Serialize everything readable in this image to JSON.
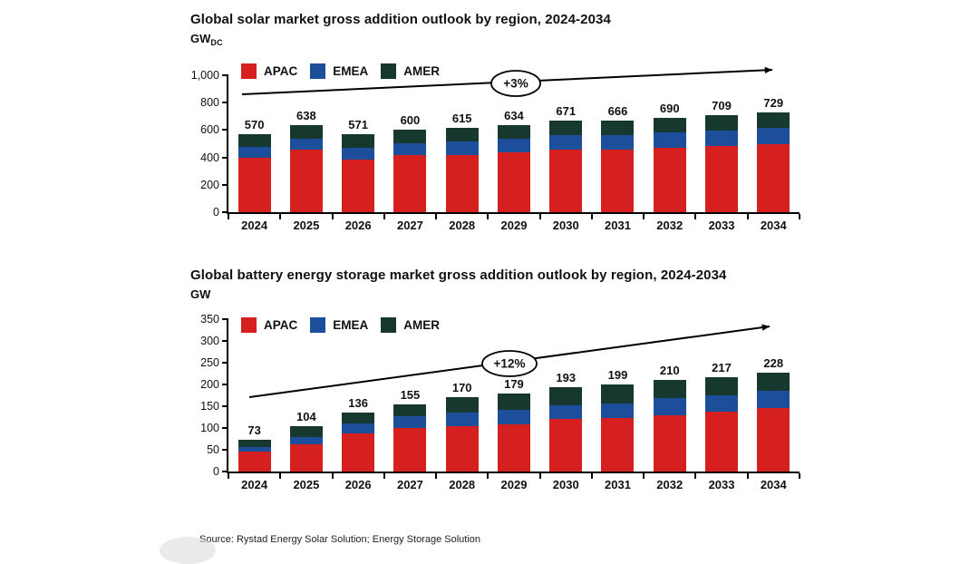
{
  "page": {
    "background": "#ffffff"
  },
  "source_note": "Source: Rystad Energy Solar Solution; Energy Storage Solution",
  "colors": {
    "apac": "#d62020",
    "emea": "#1d4e9b",
    "amer": "#17382f",
    "axis": "#000000"
  },
  "chart_data": [
    {
      "type": "bar",
      "stacked": true,
      "title": "Global solar market gross addition outlook by region, 2024-2034",
      "unit": "GW",
      "unit_subscript": "DC",
      "categories": [
        "2024",
        "2025",
        "2026",
        "2027",
        "2028",
        "2029",
        "2030",
        "2031",
        "2032",
        "2033",
        "2034"
      ],
      "series": [
        {
          "name": "APAC",
          "color": "#d62020",
          "values": [
            400,
            455,
            385,
            415,
            420,
            435,
            460,
            455,
            470,
            485,
            495
          ]
        },
        {
          "name": "EMEA",
          "color": "#1d4e9b",
          "values": [
            75,
            80,
            88,
            90,
            100,
            100,
            103,
            105,
            110,
            112,
            120
          ]
        },
        {
          "name": "AMER",
          "color": "#17382f",
          "values": [
            95,
            103,
            98,
            95,
            95,
            99,
            108,
            106,
            110,
            112,
            114
          ]
        }
      ],
      "totals": [
        570,
        638,
        571,
        600,
        615,
        634,
        671,
        666,
        690,
        709,
        729
      ],
      "ylim": [
        0,
        1000
      ],
      "ytick_step": 200,
      "ytick_labels": [
        "0",
        "200",
        "400",
        "600",
        "800",
        "1,000"
      ],
      "growth_label": "+3%",
      "legend_position": "top-left",
      "grid": false
    },
    {
      "type": "bar",
      "stacked": true,
      "title": "Global battery energy storage market gross addition outlook by region, 2024-2034",
      "unit": "GW",
      "categories": [
        "2024",
        "2025",
        "2026",
        "2027",
        "2028",
        "2029",
        "2030",
        "2031",
        "2032",
        "2033",
        "2034"
      ],
      "series": [
        {
          "name": "APAC",
          "color": "#d62020",
          "values": [
            45,
            63,
            88,
            100,
            105,
            108,
            120,
            122,
            130,
            137,
            145
          ]
        },
        {
          "name": "EMEA",
          "color": "#1d4e9b",
          "values": [
            12,
            17,
            22,
            27,
            30,
            33,
            32,
            35,
            38,
            38,
            41
          ]
        },
        {
          "name": "AMER",
          "color": "#17382f",
          "values": [
            16,
            24,
            26,
            28,
            35,
            38,
            41,
            42,
            42,
            42,
            42
          ]
        }
      ],
      "totals": [
        73,
        104,
        136,
        155,
        170,
        179,
        193,
        199,
        210,
        217,
        228
      ],
      "ylim": [
        0,
        350
      ],
      "ytick_step": 50,
      "ytick_labels": [
        "0",
        "50",
        "100",
        "150",
        "200",
        "250",
        "300",
        "350"
      ],
      "growth_label": "+12%",
      "legend_position": "top-left",
      "grid": false
    }
  ]
}
